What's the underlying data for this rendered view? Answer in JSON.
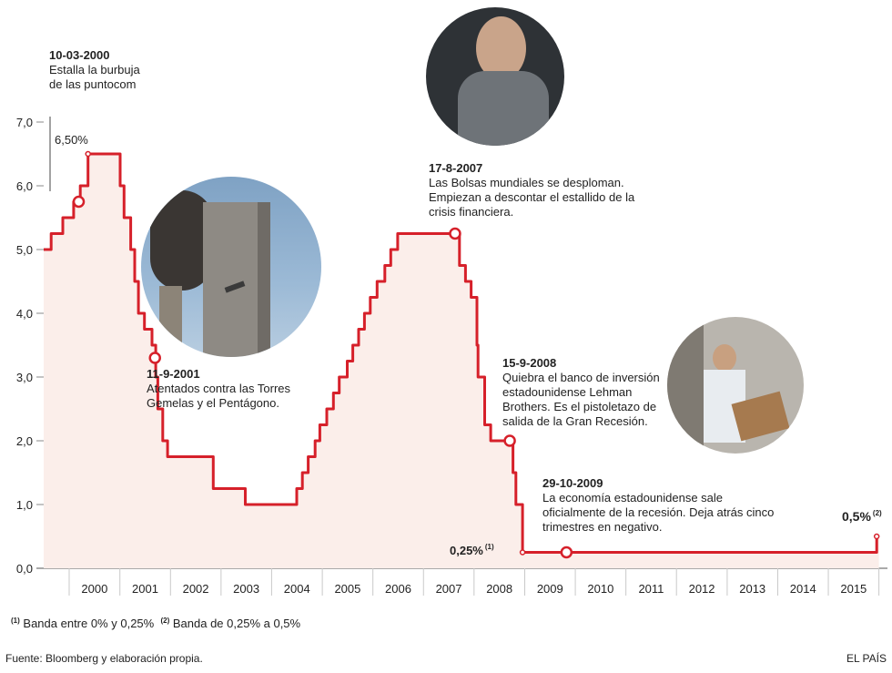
{
  "chart_data": {
    "type": "area",
    "x_start": "1999-07-01",
    "x_end": "2016-01-01",
    "ylim": [
      0,
      7
    ],
    "y_ticks": [
      "0,0",
      "1,0",
      "2,0",
      "3,0",
      "4,0",
      "5,0",
      "6,0",
      "7,0"
    ],
    "x_ticks": [
      "2000",
      "2001",
      "2002",
      "2003",
      "2004",
      "2005",
      "2006",
      "2007",
      "2008",
      "2009",
      "2010",
      "2011",
      "2012",
      "2013",
      "2014",
      "2015"
    ],
    "line_color": "#d6202a",
    "fill_color": "#fbeeea",
    "series": [
      {
        "x": [
          "1999-07-01",
          "1999-08-24",
          "1999-11-16",
          "2000-02-02",
          "2000-03-21",
          "2000-05-16",
          "2001-01-03",
          "2001-01-31",
          "2001-03-20",
          "2001-04-18",
          "2001-05-15",
          "2001-06-27",
          "2001-08-21",
          "2001-09-17",
          "2001-10-02",
          "2001-11-06",
          "2001-12-11",
          "2002-11-06",
          "2003-06-25",
          "2004-06-30",
          "2004-08-10",
          "2004-09-21",
          "2004-11-10",
          "2004-12-14",
          "2005-02-02",
          "2005-03-22",
          "2005-05-03",
          "2005-06-30",
          "2005-08-09",
          "2005-09-20",
          "2005-11-01",
          "2005-12-13",
          "2006-01-31",
          "2006-03-28",
          "2006-05-10",
          "2006-06-29",
          "2007-09-18",
          "2007-10-31",
          "2007-12-11",
          "2008-01-22",
          "2008-01-30",
          "2008-03-18",
          "2008-04-30",
          "2008-10-08",
          "2008-10-29",
          "2008-12-16",
          "2015-12-16",
          "2016-01-01"
        ],
        "values": [
          5.0,
          5.25,
          5.5,
          5.75,
          6.0,
          6.5,
          6.0,
          5.5,
          5.0,
          4.5,
          4.0,
          3.75,
          3.5,
          3.0,
          2.5,
          2.0,
          1.75,
          1.25,
          1.0,
          1.25,
          1.5,
          1.75,
          2.0,
          2.25,
          2.5,
          2.75,
          3.0,
          3.25,
          3.5,
          3.75,
          4.0,
          4.25,
          4.5,
          4.75,
          5.0,
          5.25,
          4.75,
          4.5,
          4.25,
          3.5,
          3.0,
          2.25,
          2.0,
          1.5,
          1.0,
          0.25,
          0.5,
          0.5
        ]
      }
    ],
    "markers": [
      {
        "date": "2000-03-10",
        "value": 5.75
      },
      {
        "date": "2001-09-11",
        "value": 3.3
      },
      {
        "date": "2007-08-17",
        "value": 5.25
      },
      {
        "date": "2008-09-15",
        "value": 2.0
      },
      {
        "date": "2009-10-29",
        "value": 0.25
      }
    ],
    "end_marker": {
      "date": "2015-12-16",
      "value": 0.5
    }
  },
  "annotations": [
    {
      "date": "10-03-2000",
      "text": "Estalla la burbuja de las puntocom"
    },
    {
      "date": "11-9-2001",
      "text": "Atentados contra las Torres Gemelas y el Pentágono."
    },
    {
      "date": "17-8-2007",
      "text": "Las Bolsas mundiales se desploman. Empiezan a descontar el estallido de la crisis financiera."
    },
    {
      "date": "15-9-2008",
      "text": "Quiebra el banco de inversión estadounidense Lehman Brothers. Es el pistoletazo de salida de la Gran Recesión."
    },
    {
      "date": "29-10-2009",
      "text": "La economía estadounidense sale oficialmente de la recesión. Deja atrás cinco trimestres en negativo."
    }
  ],
  "value_labels": {
    "peak": "6,50%",
    "low": "0,25%",
    "low_note": "(1)",
    "end": "0,5%",
    "end_note": "(2)"
  },
  "footnotes": {
    "n1_mark": "(1)",
    "n1": "Banda entre 0% y 0,25%",
    "n2_mark": "(2)",
    "n2": "Banda de 0,25% a 0,5%"
  },
  "source": "Fuente: Bloomberg y elaboración propia.",
  "brand": "EL PAÍS"
}
